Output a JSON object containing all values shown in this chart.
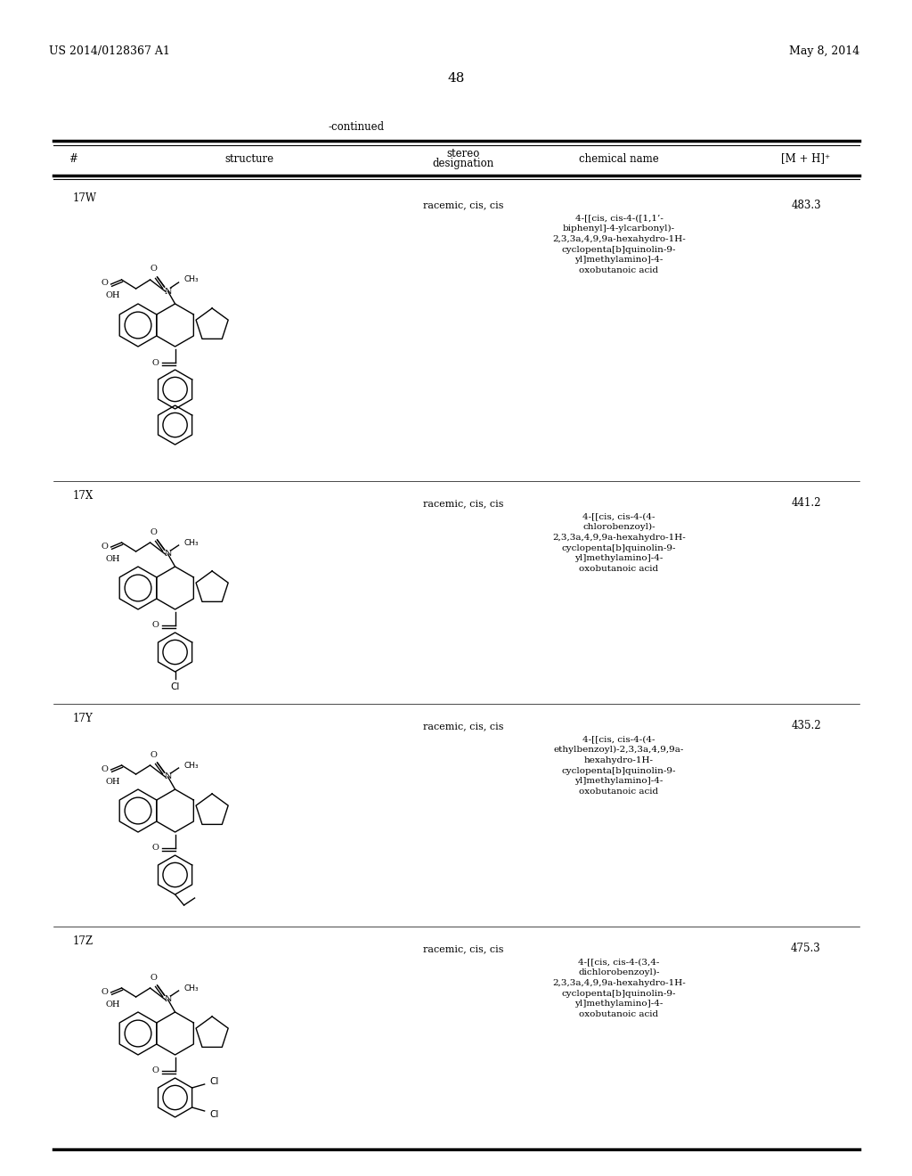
{
  "page_header_left": "US 2014/0128367 A1",
  "page_header_right": "May 8, 2014",
  "page_number": "48",
  "continued_label": "-continued",
  "col_headers": [
    "#",
    "structure",
    "stereo\ndesignation",
    "chemical name",
    "[M + H]⁺"
  ],
  "rows": [
    {
      "id": "17W",
      "stereo": "racemic, cis, cis",
      "chemical_name": "4-[[cis, cis-4-([1,1’-\nbiphenyl]-4-ylcarbonyl)-\n2,3,3a,4,9,9a-hexahydro-1H-\ncyclopenta[b]quinolin-9-\nyl]methylamino]-4-\noxobutanoic acid",
      "mh": "483.3"
    },
    {
      "id": "17X",
      "stereo": "racemic, cis, cis",
      "chemical_name": "4-[[cis, cis-4-(4-\nchlorobenzoyl)-\n2,3,3a,4,9,9a-hexahydro-1H-\ncyclopenta[b]quinolin-9-\nyl]methylamino]-4-\noxobutanoic acid",
      "mh": "441.2"
    },
    {
      "id": "17Y",
      "stereo": "racemic, cis, cis",
      "chemical_name": "4-[[cis, cis-4-(4-\nethylbenzoyl)-2,3,3a,4,9,9a-\nhexahydro-1H-\ncyclopenta[b]quinolin-9-\nyl]methylamino]-4-\noxobutanoic acid",
      "mh": "435.2"
    },
    {
      "id": "17Z",
      "stereo": "racemic, cis, cis",
      "chemical_name": "4-[[cis, cis-4-(3,4-\ndichlorobenzoyl)-\n2,3,3a,4,9,9a-hexahydro-1H-\ncyclopenta[b]quinolin-9-\nyl]methylamino]-4-\noxobutanoic acid",
      "mh": "475.3"
    }
  ],
  "bg_color": "#ffffff",
  "text_color": "#000000",
  "line_color": "#000000",
  "font_size_header": 9,
  "font_size_body": 8.5,
  "font_size_page": 9
}
